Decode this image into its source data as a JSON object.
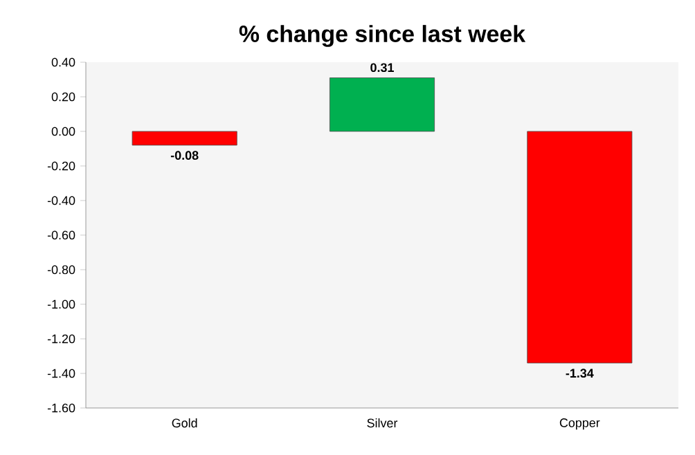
{
  "chart_data": {
    "type": "bar",
    "title": "% change since last week",
    "categories": [
      "Gold",
      "Silver",
      "Copper"
    ],
    "values": [
      -0.08,
      0.31,
      -1.34
    ],
    "colors": [
      "#ff0000",
      "#00b050",
      "#ff0000"
    ],
    "ylim": [
      -1.6,
      0.4
    ],
    "yticks": [
      {
        "value": -1.6,
        "label": "-1.60"
      },
      {
        "value": -1.4,
        "label": "-1.40"
      },
      {
        "value": -1.2,
        "label": "-1.20"
      },
      {
        "value": -1.0,
        "label": "-1.00"
      },
      {
        "value": -0.8,
        "label": "-0.80"
      },
      {
        "value": -0.6,
        "label": "-0.60"
      },
      {
        "value": -0.4,
        "label": "-0.40"
      },
      {
        "value": -0.2,
        "label": "-0.20"
      },
      {
        "value": 0,
        "label": "0.00"
      },
      {
        "value": 0.2,
        "label": "0.20"
      },
      {
        "value": 0.4,
        "label": "0.40"
      }
    ],
    "data_labels": true
  }
}
